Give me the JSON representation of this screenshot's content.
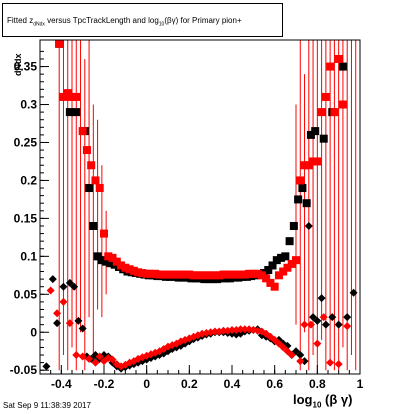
{
  "title": {
    "pre": "Fitted  z",
    "sub": "dNdx",
    "mid": " versus TpcTrackLength and log",
    "sub2": "10",
    "post": "(βγ) for Primary pion+"
  },
  "ylabel": "dNdx",
  "datestamp": "Sat Sep  9 11:38:39 2017",
  "xlabel": {
    "pre": "log",
    "sub": "10",
    "post": " (β γ)"
  },
  "colors": {
    "series_a": "#000000",
    "series_b": "#ff0000",
    "error_bar": "#ff0000"
  },
  "chart_data": {
    "type": "scatter",
    "xlim": [
      -0.5,
      1.0
    ],
    "ylim": [
      -0.055,
      0.385
    ],
    "xticks": [
      -0.4,
      -0.2,
      0,
      0.2,
      0.4,
      0.6,
      0.8,
      1
    ],
    "xtick_labels": [
      "-0.4",
      "-0.2",
      "0",
      "0.2",
      "0.4",
      "0.6",
      "0.8",
      "1"
    ],
    "yticks": [
      -0.05,
      0,
      0.05,
      0.1,
      0.15,
      0.2,
      0.25,
      0.3,
      0.35
    ],
    "ytick_labels": [
      "-0.05",
      "0",
      "0.05",
      "0.1",
      "0.15",
      "0.2",
      "0.25",
      "0.3",
      "0.35"
    ],
    "grid": false,
    "series": [
      {
        "marker": "square",
        "color": "#000000",
        "points": [
          [
            -0.41,
            0.38
          ],
          [
            -0.36,
            0.29
          ],
          [
            -0.33,
            0.29
          ],
          [
            -0.29,
            0.265
          ],
          [
            -0.27,
            0.19
          ],
          [
            -0.25,
            0.14
          ],
          [
            -0.23,
            0.1
          ],
          [
            -0.21,
            0.095
          ],
          [
            -0.19,
            0.093
          ],
          [
            -0.17,
            0.091
          ],
          [
            -0.15,
            0.089
          ],
          [
            -0.13,
            0.086
          ],
          [
            -0.11,
            0.083
          ],
          [
            -0.09,
            0.08
          ],
          [
            -0.07,
            0.079
          ],
          [
            -0.05,
            0.078
          ],
          [
            -0.03,
            0.077
          ],
          [
            -0.01,
            0.076
          ],
          [
            0.01,
            0.075
          ],
          [
            0.03,
            0.075
          ],
          [
            0.05,
            0.074
          ],
          [
            0.07,
            0.074
          ],
          [
            0.09,
            0.073
          ],
          [
            0.11,
            0.073
          ],
          [
            0.13,
            0.073
          ],
          [
            0.15,
            0.072
          ],
          [
            0.17,
            0.072
          ],
          [
            0.19,
            0.072
          ],
          [
            0.21,
            0.071
          ],
          [
            0.23,
            0.071
          ],
          [
            0.25,
            0.071
          ],
          [
            0.27,
            0.07
          ],
          [
            0.29,
            0.07
          ],
          [
            0.31,
            0.07
          ],
          [
            0.33,
            0.07
          ],
          [
            0.35,
            0.071
          ],
          [
            0.37,
            0.071
          ],
          [
            0.39,
            0.071
          ],
          [
            0.41,
            0.072
          ],
          [
            0.43,
            0.072
          ],
          [
            0.45,
            0.073
          ],
          [
            0.47,
            0.073
          ],
          [
            0.49,
            0.074
          ],
          [
            0.51,
            0.075
          ],
          [
            0.53,
            0.076
          ],
          [
            0.55,
            0.078
          ],
          [
            0.57,
            0.082
          ],
          [
            0.59,
            0.088
          ],
          [
            0.61,
            0.095
          ],
          [
            0.63,
            0.098
          ],
          [
            0.65,
            0.1
          ],
          [
            0.67,
            0.12
          ],
          [
            0.69,
            0.14
          ],
          [
            0.71,
            0.175
          ],
          [
            0.73,
            0.19
          ],
          [
            0.75,
            0.17
          ],
          [
            0.77,
            0.26
          ],
          [
            0.79,
            0.265
          ],
          [
            0.83,
            0.255
          ],
          [
            0.87,
            0.29
          ],
          [
            0.92,
            0.35
          ]
        ]
      },
      {
        "marker": "square",
        "color": "#ff0000",
        "points": [
          [
            -0.41,
            0.38
          ],
          [
            -0.39,
            0.31
          ],
          [
            -0.37,
            0.315
          ],
          [
            -0.35,
            0.31
          ],
          [
            -0.33,
            0.31
          ],
          [
            -0.3,
            0.265
          ],
          [
            -0.28,
            0.24
          ],
          [
            -0.26,
            0.22
          ],
          [
            -0.24,
            0.2
          ],
          [
            -0.22,
            0.19
          ],
          [
            -0.2,
            0.13
          ],
          [
            -0.18,
            0.1
          ],
          [
            -0.16,
            0.098
          ],
          [
            -0.14,
            0.093
          ],
          [
            -0.12,
            0.088
          ],
          [
            -0.1,
            0.085
          ],
          [
            -0.08,
            0.083
          ],
          [
            -0.06,
            0.081
          ],
          [
            -0.04,
            0.079
          ],
          [
            -0.02,
            0.078
          ],
          [
            0.0,
            0.077
          ],
          [
            0.02,
            0.077
          ],
          [
            0.04,
            0.077
          ],
          [
            0.06,
            0.076
          ],
          [
            0.08,
            0.076
          ],
          [
            0.1,
            0.076
          ],
          [
            0.12,
            0.076
          ],
          [
            0.14,
            0.076
          ],
          [
            0.16,
            0.076
          ],
          [
            0.18,
            0.076
          ],
          [
            0.2,
            0.076
          ],
          [
            0.22,
            0.075
          ],
          [
            0.24,
            0.075
          ],
          [
            0.26,
            0.075
          ],
          [
            0.28,
            0.075
          ],
          [
            0.3,
            0.075
          ],
          [
            0.32,
            0.075
          ],
          [
            0.34,
            0.075
          ],
          [
            0.36,
            0.076
          ],
          [
            0.38,
            0.076
          ],
          [
            0.4,
            0.076
          ],
          [
            0.42,
            0.076
          ],
          [
            0.44,
            0.076
          ],
          [
            0.46,
            0.076
          ],
          [
            0.48,
            0.077
          ],
          [
            0.5,
            0.077
          ],
          [
            0.52,
            0.077
          ],
          [
            0.54,
            0.075
          ],
          [
            0.56,
            0.071
          ],
          [
            0.58,
            0.065
          ],
          [
            0.6,
            0.06
          ],
          [
            0.62,
            0.075
          ],
          [
            0.64,
            0.08
          ],
          [
            0.66,
            0.085
          ],
          [
            0.68,
            0.09
          ],
          [
            0.7,
            0.095
          ],
          [
            0.72,
            0.2
          ],
          [
            0.74,
            0.22
          ],
          [
            0.76,
            0.22
          ],
          [
            0.78,
            0.225
          ],
          [
            0.8,
            0.225
          ],
          [
            0.82,
            0.29
          ],
          [
            0.84,
            0.31
          ],
          [
            0.86,
            0.35
          ],
          [
            0.88,
            0.29
          ],
          [
            0.9,
            0.36
          ],
          [
            0.92,
            0.3
          ]
        ]
      },
      {
        "marker": "diamond",
        "color": "#000000",
        "points": [
          [
            -0.47,
            -0.045
          ],
          [
            -0.44,
            0.07
          ],
          [
            -0.42,
            0.012
          ],
          [
            -0.39,
            0.06
          ],
          [
            -0.36,
            0.065
          ],
          [
            -0.34,
            0.06
          ],
          [
            -0.32,
            0.015
          ],
          [
            -0.3,
            0.005
          ],
          [
            -0.28,
            -0.032
          ],
          [
            -0.26,
            -0.035
          ],
          [
            -0.24,
            -0.03
          ],
          [
            -0.22,
            -0.035
          ],
          [
            -0.2,
            -0.03
          ],
          [
            -0.18,
            -0.032
          ],
          [
            -0.16,
            -0.04
          ],
          [
            -0.14,
            -0.045
          ],
          [
            -0.12,
            -0.048
          ],
          [
            -0.1,
            -0.046
          ],
          [
            -0.08,
            -0.044
          ],
          [
            -0.06,
            -0.042
          ],
          [
            -0.04,
            -0.04
          ],
          [
            -0.02,
            -0.038
          ],
          [
            0.0,
            -0.036
          ],
          [
            0.02,
            -0.034
          ],
          [
            0.04,
            -0.032
          ],
          [
            0.06,
            -0.03
          ],
          [
            0.08,
            -0.028
          ],
          [
            0.1,
            -0.025
          ],
          [
            0.12,
            -0.022
          ],
          [
            0.14,
            -0.02
          ],
          [
            0.16,
            -0.018
          ],
          [
            0.18,
            -0.015
          ],
          [
            0.2,
            -0.012
          ],
          [
            0.22,
            -0.009
          ],
          [
            0.24,
            -0.007
          ],
          [
            0.26,
            -0.005
          ],
          [
            0.28,
            -0.003
          ],
          [
            0.3,
            -0.002
          ],
          [
            0.32,
            0.0
          ],
          [
            0.34,
            0.0
          ],
          [
            0.36,
            0.0
          ],
          [
            0.38,
            -0.001
          ],
          [
            0.4,
            -0.002
          ],
          [
            0.42,
            -0.003
          ],
          [
            0.44,
            -0.002
          ],
          [
            0.46,
            0.001
          ],
          [
            0.48,
            0.002
          ],
          [
            0.5,
            0.003
          ],
          [
            0.52,
            0.004
          ],
          [
            0.54,
            -0.004
          ],
          [
            0.56,
            -0.006
          ],
          [
            0.58,
            -0.008
          ],
          [
            0.6,
            -0.012
          ],
          [
            0.62,
            -0.01
          ],
          [
            0.64,
            -0.015
          ],
          [
            0.66,
            -0.018
          ],
          [
            0.68,
            -0.03
          ],
          [
            0.7,
            -0.025
          ],
          [
            0.72,
            -0.03
          ],
          [
            0.74,
            -0.038
          ],
          [
            0.76,
            0.14
          ],
          [
            0.78,
            0.02
          ],
          [
            0.8,
            0.015
          ],
          [
            0.82,
            0.045
          ],
          [
            0.84,
            0.01
          ],
          [
            0.87,
            0.02
          ],
          [
            0.9,
            0.01
          ],
          [
            0.94,
            0.02
          ],
          [
            0.97,
            0.052
          ]
        ]
      },
      {
        "marker": "diamond",
        "color": "#ff0000",
        "points": [
          [
            -0.45,
            0.055
          ],
          [
            -0.42,
            0.025
          ],
          [
            -0.39,
            0.04
          ],
          [
            -0.36,
            0.012
          ],
          [
            -0.33,
            -0.03
          ],
          [
            -0.3,
            -0.032
          ],
          [
            -0.27,
            -0.035
          ],
          [
            -0.24,
            -0.04
          ],
          [
            -0.22,
            -0.032
          ],
          [
            -0.2,
            -0.038
          ],
          [
            -0.18,
            -0.034
          ],
          [
            -0.16,
            -0.036
          ],
          [
            -0.14,
            -0.042
          ],
          [
            -0.12,
            -0.045
          ],
          [
            -0.1,
            -0.043
          ],
          [
            -0.08,
            -0.04
          ],
          [
            -0.06,
            -0.038
          ],
          [
            -0.04,
            -0.035
          ],
          [
            -0.02,
            -0.033
          ],
          [
            0.0,
            -0.031
          ],
          [
            0.02,
            -0.029
          ],
          [
            0.04,
            -0.027
          ],
          [
            0.06,
            -0.025
          ],
          [
            0.08,
            -0.022
          ],
          [
            0.1,
            -0.019
          ],
          [
            0.12,
            -0.017
          ],
          [
            0.14,
            -0.015
          ],
          [
            0.16,
            -0.012
          ],
          [
            0.18,
            -0.01
          ],
          [
            0.2,
            -0.008
          ],
          [
            0.22,
            -0.006
          ],
          [
            0.24,
            -0.004
          ],
          [
            0.26,
            -0.002
          ],
          [
            0.28,
            -0.001
          ],
          [
            0.3,
            0.0
          ],
          [
            0.32,
            0.001
          ],
          [
            0.34,
            0.001
          ],
          [
            0.36,
            0.002
          ],
          [
            0.38,
            0.002
          ],
          [
            0.4,
            0.003
          ],
          [
            0.42,
            0.003
          ],
          [
            0.44,
            0.004
          ],
          [
            0.46,
            0.004
          ],
          [
            0.48,
            0.004
          ],
          [
            0.5,
            0.003
          ],
          [
            0.52,
            0.002
          ],
          [
            0.54,
            0.001
          ],
          [
            0.56,
            -0.002
          ],
          [
            0.58,
            -0.006
          ],
          [
            0.6,
            -0.01
          ],
          [
            0.62,
            -0.015
          ],
          [
            0.64,
            -0.02
          ],
          [
            0.66,
            -0.025
          ],
          [
            0.68,
            -0.03
          ],
          [
            0.72,
            -0.038
          ],
          [
            0.74,
            0.01
          ],
          [
            0.77,
            0.01
          ],
          [
            0.8,
            -0.015
          ],
          [
            0.83,
            0.02
          ],
          [
            0.86,
            -0.04
          ],
          [
            0.9,
            -0.042
          ],
          [
            0.94,
            0.008
          ]
        ]
      }
    ],
    "error_bars": [
      [
        -0.41,
        -0.05,
        0.385
      ],
      [
        -0.39,
        -0.03,
        0.385
      ],
      [
        -0.37,
        -0.05,
        0.385
      ],
      [
        -0.35,
        -0.02,
        0.385
      ],
      [
        -0.33,
        -0.05,
        0.385
      ],
      [
        -0.31,
        0.0,
        0.385
      ],
      [
        -0.29,
        -0.05,
        0.36
      ],
      [
        -0.27,
        0.02,
        0.385
      ],
      [
        -0.25,
        -0.04,
        0.3
      ],
      [
        -0.23,
        0.03,
        0.28
      ],
      [
        -0.21,
        0.02,
        0.22
      ],
      [
        -0.19,
        0.05,
        0.16
      ],
      [
        0.7,
        0.01,
        0.3
      ],
      [
        0.72,
        -0.05,
        0.385
      ],
      [
        0.74,
        0.0,
        0.34
      ],
      [
        0.76,
        -0.05,
        0.385
      ],
      [
        0.78,
        -0.03,
        0.385
      ],
      [
        0.8,
        -0.05,
        0.385
      ],
      [
        0.82,
        -0.01,
        0.385
      ],
      [
        0.84,
        -0.05,
        0.385
      ],
      [
        0.86,
        -0.04,
        0.385
      ],
      [
        0.88,
        -0.05,
        0.385
      ],
      [
        0.9,
        -0.05,
        0.385
      ],
      [
        0.92,
        -0.02,
        0.385
      ],
      [
        0.94,
        -0.05,
        0.385
      ],
      [
        0.96,
        -0.03,
        0.385
      ],
      [
        0.98,
        -0.05,
        0.385
      ]
    ]
  }
}
